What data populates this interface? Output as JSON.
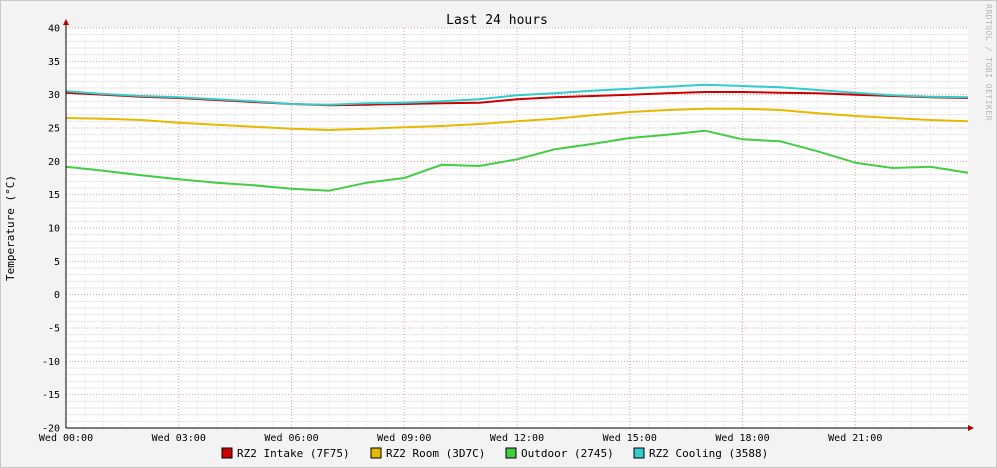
{
  "chart_data": {
    "type": "line",
    "title": "Last 24 hours",
    "ylabel": "Temperature (°C)",
    "xlabel": "",
    "watermark": "RRDTOOL / TOBI OETIKER",
    "ylim": [
      -20,
      40
    ],
    "y_ticks": [
      40,
      35,
      30,
      25,
      20,
      15,
      10,
      5,
      0,
      -5,
      -10,
      -15,
      -20
    ],
    "x_range_hours": [
      0,
      24
    ],
    "x_ticks": [
      {
        "hour": 0,
        "label": "Wed 00:00"
      },
      {
        "hour": 3,
        "label": "Wed 03:00"
      },
      {
        "hour": 6,
        "label": "Wed 06:00"
      },
      {
        "hour": 9,
        "label": "Wed 09:00"
      },
      {
        "hour": 12,
        "label": "Wed 12:00"
      },
      {
        "hour": 15,
        "label": "Wed 15:00"
      },
      {
        "hour": 18,
        "label": "Wed 18:00"
      },
      {
        "hour": 21,
        "label": "Wed 21:00"
      }
    ],
    "grid": true,
    "legend_position": "bottom",
    "series": [
      {
        "name": "RZ2 Intake (7F75)",
        "color": "#cc0000",
        "x": [
          0,
          1,
          2,
          3,
          4,
          5,
          6,
          7,
          8,
          9,
          10,
          11,
          12,
          13,
          14,
          15,
          16,
          17,
          18,
          19,
          20,
          21,
          22,
          23,
          24
        ],
        "y": [
          30.3,
          30.0,
          29.7,
          29.5,
          29.2,
          28.9,
          28.6,
          28.4,
          28.5,
          28.6,
          28.7,
          28.8,
          29.3,
          29.6,
          29.8,
          30.0,
          30.2,
          30.4,
          30.4,
          30.3,
          30.2,
          30.0,
          29.8,
          29.6,
          29.5
        ]
      },
      {
        "name": "RZ2 Room (3D7C)",
        "color": "#e6b800",
        "x": [
          0,
          1,
          2,
          3,
          4,
          5,
          6,
          7,
          8,
          9,
          10,
          11,
          12,
          13,
          14,
          15,
          16,
          17,
          18,
          19,
          20,
          21,
          22,
          23,
          24
        ],
        "y": [
          26.5,
          26.4,
          26.2,
          25.8,
          25.5,
          25.2,
          24.9,
          24.7,
          24.9,
          25.1,
          25.3,
          25.6,
          26.0,
          26.4,
          26.9,
          27.4,
          27.7,
          27.9,
          27.9,
          27.7,
          27.2,
          26.8,
          26.5,
          26.2,
          26.0
        ]
      },
      {
        "name": "Outdoor (2745)",
        "color": "#44cc44",
        "x": [
          0,
          1,
          2,
          3,
          4,
          5,
          6,
          7,
          8,
          9,
          10,
          11,
          12,
          13,
          14,
          15,
          16,
          17,
          18,
          19,
          20,
          21,
          22,
          23,
          24
        ],
        "y": [
          19.2,
          18.6,
          17.9,
          17.3,
          16.8,
          16.4,
          15.9,
          15.6,
          16.8,
          17.5,
          19.5,
          19.3,
          20.3,
          21.8,
          22.6,
          23.5,
          24.0,
          24.6,
          23.3,
          23.0,
          21.5,
          19.8,
          19.0,
          19.2,
          18.3
        ]
      },
      {
        "name": "RZ2 Cooling (3588)",
        "color": "#33cccc",
        "x": [
          0,
          1,
          2,
          3,
          4,
          5,
          6,
          7,
          8,
          9,
          10,
          11,
          12,
          13,
          14,
          15,
          16,
          17,
          18,
          19,
          20,
          21,
          22,
          23,
          24
        ],
        "y": [
          30.5,
          30.1,
          29.8,
          29.6,
          29.3,
          29.0,
          28.6,
          28.5,
          28.7,
          28.8,
          29.0,
          29.3,
          29.9,
          30.2,
          30.6,
          30.9,
          31.2,
          31.5,
          31.3,
          31.1,
          30.7,
          30.3,
          29.9,
          29.7,
          29.6
        ]
      }
    ]
  }
}
